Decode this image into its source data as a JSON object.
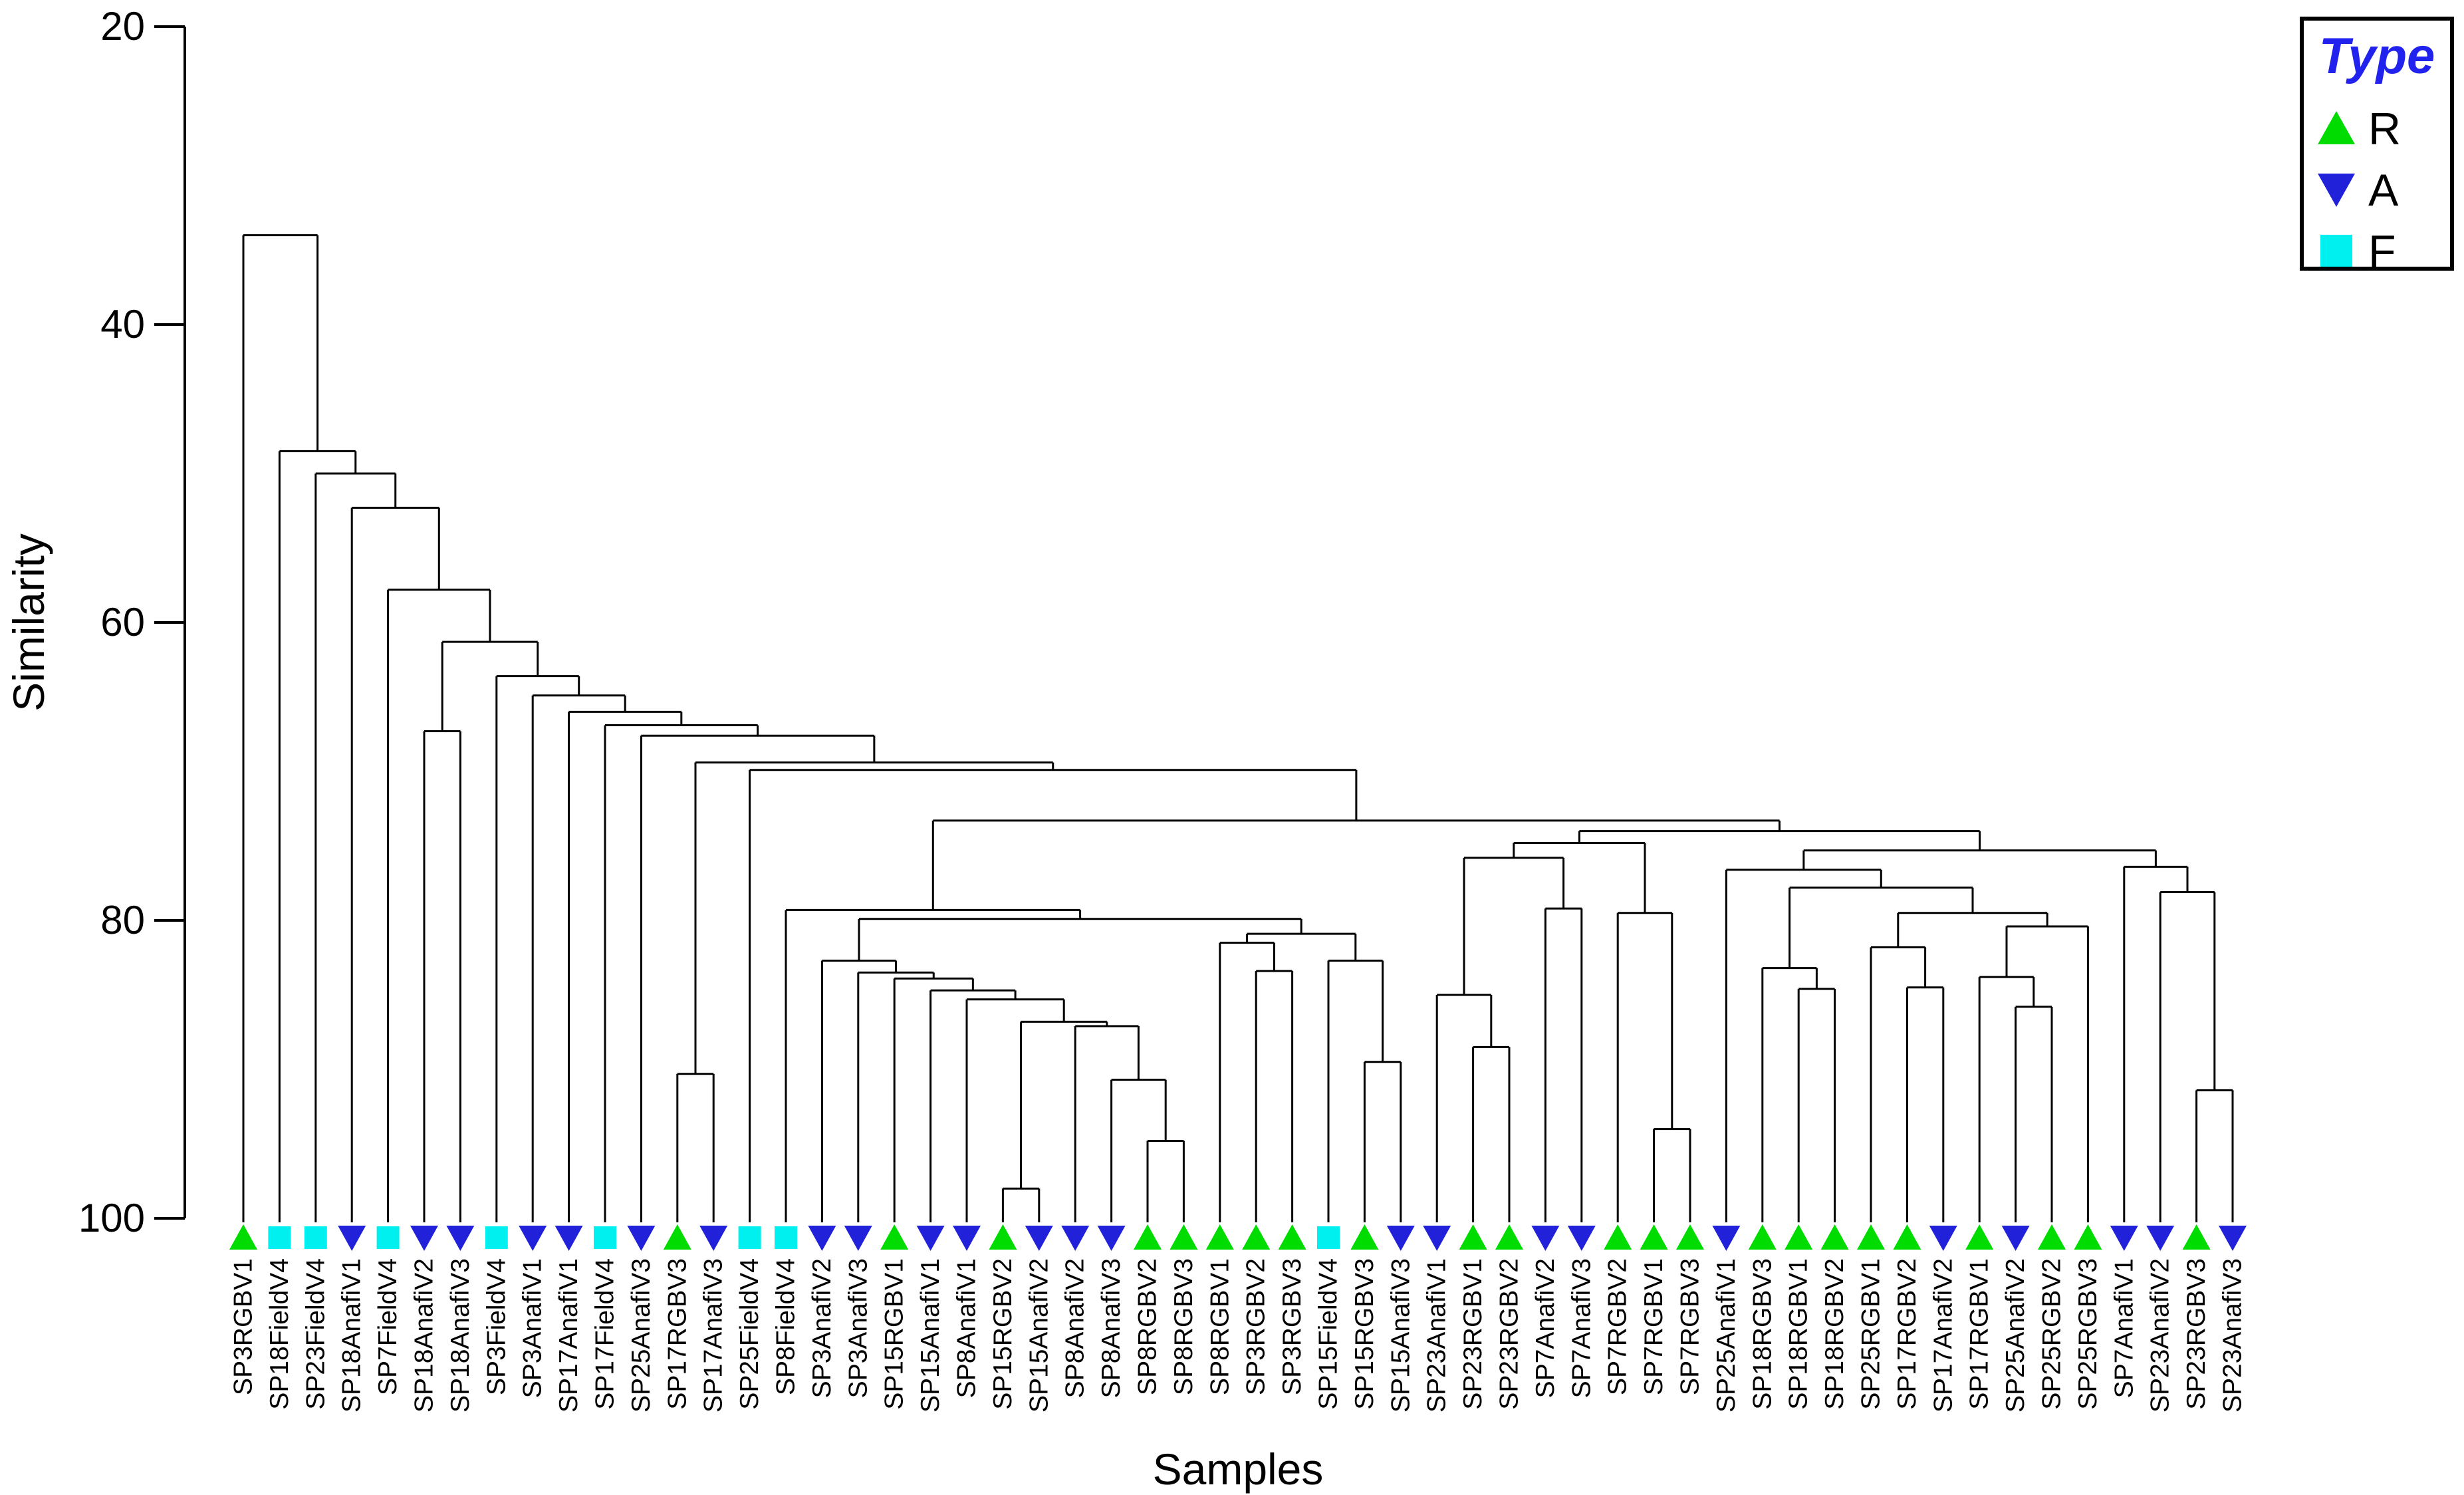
{
  "chart_data": {
    "type": "dendrogram",
    "title": "",
    "ylabel": "Similarity",
    "xlabel": "Samples",
    "y_axis": {
      "min": 20,
      "max": 100,
      "ticks": [
        20,
        40,
        60,
        80,
        100
      ],
      "direction": "descending-down"
    },
    "legend": {
      "title": "Type",
      "title_color": "#2222EE",
      "items": [
        {
          "label": "R",
          "symbol": "triangle-up",
          "color": "#00DB00"
        },
        {
          "label": "A",
          "symbol": "triangle-down",
          "color": "#2121D9"
        },
        {
          "label": "F",
          "symbol": "square",
          "color": "#00EFEF"
        }
      ]
    },
    "leaves": [
      {
        "label": "SP3RGBV1",
        "type": "R"
      },
      {
        "label": "SP18FieldV4",
        "type": "F"
      },
      {
        "label": "SP23FieldV4",
        "type": "F"
      },
      {
        "label": "SP18AnafiV1",
        "type": "A"
      },
      {
        "label": "SP7FieldV4",
        "type": "F"
      },
      {
        "label": "SP18AnafiV2",
        "type": "A"
      },
      {
        "label": "SP18AnafiV3",
        "type": "A"
      },
      {
        "label": "SP3FieldV4",
        "type": "F"
      },
      {
        "label": "SP3AnafiV1",
        "type": "A"
      },
      {
        "label": "SP17AnafiV1",
        "type": "A"
      },
      {
        "label": "SP17FieldV4",
        "type": "F"
      },
      {
        "label": "SP25AnafiV3",
        "type": "A"
      },
      {
        "label": "SP17RGBV3",
        "type": "R"
      },
      {
        "label": "SP17AnafiV3",
        "type": "A"
      },
      {
        "label": "SP25FieldV4",
        "type": "F"
      },
      {
        "label": "SP8FieldV4",
        "type": "F"
      },
      {
        "label": "SP3AnafiV2",
        "type": "A"
      },
      {
        "label": "SP3AnafiV3",
        "type": "A"
      },
      {
        "label": "SP15RGBV1",
        "type": "R"
      },
      {
        "label": "SP15AnafiV1",
        "type": "A"
      },
      {
        "label": "SP8AnafiV1",
        "type": "A"
      },
      {
        "label": "SP15RGBV2",
        "type": "R"
      },
      {
        "label": "SP15AnafiV2",
        "type": "A"
      },
      {
        "label": "SP8AnafiV2",
        "type": "A"
      },
      {
        "label": "SP8AnafiV3",
        "type": "A"
      },
      {
        "label": "SP8RGBV2",
        "type": "R"
      },
      {
        "label": "SP8RGBV3",
        "type": "R"
      },
      {
        "label": "SP8RGBV1",
        "type": "R"
      },
      {
        "label": "SP3RGBV2",
        "type": "R"
      },
      {
        "label": "SP3RGBV3",
        "type": "R"
      },
      {
        "label": "SP15FieldV4",
        "type": "F"
      },
      {
        "label": "SP15RGBV3",
        "type": "R"
      },
      {
        "label": "SP15AnafiV3",
        "type": "A"
      },
      {
        "label": "SP23AnafiV1",
        "type": "A"
      },
      {
        "label": "SP23RGBV1",
        "type": "R"
      },
      {
        "label": "SP23RGBV2",
        "type": "R"
      },
      {
        "label": "SP7AnafiV2",
        "type": "A"
      },
      {
        "label": "SP7AnafiV3",
        "type": "A"
      },
      {
        "label": "SP7RGBV2",
        "type": "R"
      },
      {
        "label": "SP7RGBV1",
        "type": "R"
      },
      {
        "label": "SP7RGBV3",
        "type": "R"
      },
      {
        "label": "SP25AnafiV1",
        "type": "A"
      },
      {
        "label": "SP18RGBV3",
        "type": "R"
      },
      {
        "label": "SP18RGBV1",
        "type": "R"
      },
      {
        "label": "SP18RGBV2",
        "type": "R"
      },
      {
        "label": "SP25RGBV1",
        "type": "R"
      },
      {
        "label": "SP17RGBV2",
        "type": "R"
      },
      {
        "label": "SP17AnafiV2",
        "type": "A"
      },
      {
        "label": "SP17RGBV1",
        "type": "R"
      },
      {
        "label": "SP25AnafiV2",
        "type": "A"
      },
      {
        "label": "SP25RGBV2",
        "type": "R"
      },
      {
        "label": "SP25RGBV3",
        "type": "R"
      },
      {
        "label": "SP7AnafiV1",
        "type": "A"
      },
      {
        "label": "SP23AnafiV2",
        "type": "A"
      },
      {
        "label": "SP23RGBV3",
        "type": "R"
      },
      {
        "label": "SP23AnafiV3",
        "type": "A"
      }
    ],
    "linkage": [
      34.0,
      1,
      [
        48.5,
        2,
        [
          50.0,
          3,
          [
            52.3,
            4,
            [
              57.8,
              5,
              [
                61.3,
                [
                  67.3,
                  6,
                  7
                ],
                [
                  63.6,
                  8,
                  [
                    64.9,
                    9,
                    [
                      66.0,
                      10,
                      [
                        66.9,
                        11,
                        [
                          67.6,
                          12,
                          [
                            69.4,
                            [
                              90.3,
                              13,
                              14
                            ],
                            [
                              69.9,
                              15,
                              [
                                73.3,
                                [
                                  79.3,
                                  16,
                                  [
                                    79.9,
                                    [
                                      82.7,
                                      17,
                                      [
                                        83.5,
                                        18,
                                        [
                                          83.9,
                                          19,
                                          [
                                            84.7,
                                            20,
                                            [
                                              85.3,
                                              21,
                                              [
                                                86.8,
                                                [
                                                  98.0,
                                                  22,
                                                  23
                                                ],
                                                [
                                                  87.1,
                                                  24,
                                                  [
                                                    90.7,
                                                    25,
                                                    [
                                                      94.8,
                                                      26,
                                                      27
                                                    ]
                                                  ]
                                                ]
                                              ]
                                            ]
                                          ]
                                        ]
                                      ]
                                    ],
                                    [
                                      80.9,
                                      [
                                        81.5,
                                        28,
                                        [
                                          83.4,
                                          29,
                                          30
                                        ]
                                      ],
                                      [
                                        82.7,
                                        31,
                                        [
                                          89.5,
                                          32,
                                          33
                                        ]
                                      ]
                                    ]
                                  ]
                                ],
                                [
                                  74.0,
                                  [
                                    74.8,
                                    [
                                      75.8,
                                      [
                                        85.0,
                                        34,
                                        [
                                          88.5,
                                          35,
                                          36
                                        ]
                                      ],
                                      [
                                        79.2,
                                        37,
                                        38
                                      ]
                                    ],
                                    [
                                      79.5,
                                      39,
                                      [
                                        94.0,
                                        40,
                                        41
                                      ]
                                    ]
                                  ],
                                  [
                                    75.3,
                                    [
                                      76.6,
                                      42,
                                      [
                                        77.8,
                                        [
                                          83.2,
                                          43,
                                          [
                                            84.6,
                                            44,
                                            45
                                          ]
                                        ],
                                        [
                                          79.5,
                                          [
                                            81.8,
                                            46,
                                            [
                                              84.5,
                                              47,
                                              48
                                            ]
                                          ],
                                          [
                                            80.4,
                                            [
                                              83.8,
                                              49,
                                              [
                                                85.8,
                                                50,
                                                51
                                              ]
                                            ],
                                            52
                                          ]
                                        ]
                                      ]
                                    ],
                                    [
                                      76.4,
                                      53,
                                      [
                                        78.1,
                                        54,
                                        [
                                          91.4,
                                          55,
                                          56
                                        ]
                                      ]
                                    ]
                                  ]
                                ]
                              ]
                            ]
                          ]
                        ]
                      ]
                    ]
                  ]
                ]
              ]
            ]
          ]
        ]
      ]
    ]
  }
}
